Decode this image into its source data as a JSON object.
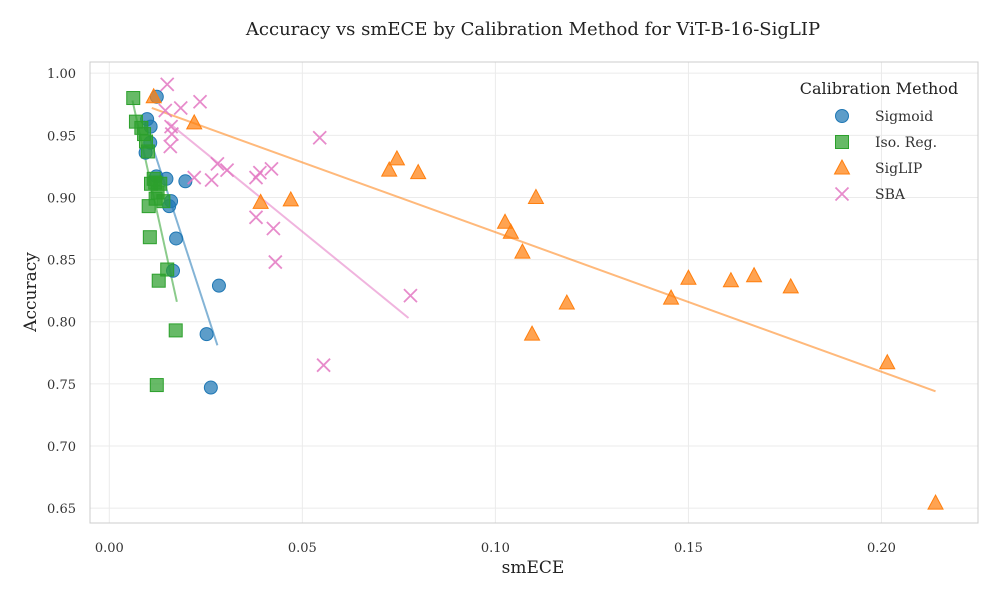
{
  "chart_data": {
    "type": "scatter",
    "title": "Accuracy vs smECE by Calibration Method for ViT-B-16-SigLIP",
    "xlabel": "smECE",
    "ylabel": "Accuracy",
    "xlim": [
      -0.005,
      0.225
    ],
    "ylim": [
      0.638,
      1.009
    ],
    "xticks": [
      0.0,
      0.05,
      0.1,
      0.15,
      0.2
    ],
    "xtick_labels": [
      "0.00",
      "0.05",
      "0.10",
      "0.15",
      "0.20"
    ],
    "yticks": [
      0.65,
      0.7,
      0.75,
      0.8,
      0.85,
      0.9,
      0.95,
      1.0
    ],
    "ytick_labels": [
      "0.65",
      "0.70",
      "0.75",
      "0.80",
      "0.85",
      "0.90",
      "0.95",
      "1.00"
    ],
    "grid": true,
    "legend": {
      "title": "Calibration Method",
      "placement": "top-right"
    },
    "series": [
      {
        "name": "Sigmoid",
        "marker": "circle",
        "color": "#1f77b4",
        "points": [
          [
            0.0123,
            0.981
          ],
          [
            0.0098,
            0.963
          ],
          [
            0.0107,
            0.957
          ],
          [
            0.0106,
            0.944
          ],
          [
            0.0094,
            0.936
          ],
          [
            0.0122,
            0.917
          ],
          [
            0.0148,
            0.915
          ],
          [
            0.0197,
            0.913
          ],
          [
            0.016,
            0.897
          ],
          [
            0.0155,
            0.893
          ],
          [
            0.0173,
            0.867
          ],
          [
            0.0165,
            0.841
          ],
          [
            0.0284,
            0.829
          ],
          [
            0.0252,
            0.79
          ],
          [
            0.0263,
            0.747
          ]
        ],
        "trend": [
          [
            0.009,
            0.962
          ],
          [
            0.028,
            0.781
          ]
        ]
      },
      {
        "name": "Iso. Reg.",
        "marker": "square",
        "color": "#2ca02c",
        "points": [
          [
            0.0062,
            0.98
          ],
          [
            0.0069,
            0.961
          ],
          [
            0.0083,
            0.956
          ],
          [
            0.009,
            0.951
          ],
          [
            0.0095,
            0.945
          ],
          [
            0.01,
            0.937
          ],
          [
            0.0108,
            0.911
          ],
          [
            0.0119,
            0.912
          ],
          [
            0.0132,
            0.911
          ],
          [
            0.0125,
            0.904
          ],
          [
            0.014,
            0.897
          ],
          [
            0.012,
            0.899
          ],
          [
            0.0102,
            0.893
          ],
          [
            0.0105,
            0.868
          ],
          [
            0.015,
            0.842
          ],
          [
            0.0128,
            0.833
          ],
          [
            0.0172,
            0.793
          ],
          [
            0.0123,
            0.749
          ],
          [
            0.0115,
            0.915
          ]
        ],
        "trend": [
          [
            0.006,
            0.978
          ],
          [
            0.0175,
            0.816
          ]
        ]
      },
      {
        "name": "SigLIP",
        "marker": "triangle",
        "color": "#ff7f0e",
        "points": [
          [
            0.0115,
            0.981
          ],
          [
            0.022,
            0.96
          ],
          [
            0.0392,
            0.896
          ],
          [
            0.047,
            0.898
          ],
          [
            0.0725,
            0.922
          ],
          [
            0.0745,
            0.931
          ],
          [
            0.08,
            0.92
          ],
          [
            0.1025,
            0.88
          ],
          [
            0.104,
            0.872
          ],
          [
            0.107,
            0.856
          ],
          [
            0.1105,
            0.9
          ],
          [
            0.1095,
            0.79
          ],
          [
            0.1185,
            0.815
          ],
          [
            0.1455,
            0.819
          ],
          [
            0.15,
            0.835
          ],
          [
            0.161,
            0.833
          ],
          [
            0.167,
            0.837
          ],
          [
            0.1765,
            0.828
          ],
          [
            0.2015,
            0.767
          ],
          [
            0.214,
            0.654
          ]
        ],
        "trend": [
          [
            0.011,
            0.972
          ],
          [
            0.214,
            0.744
          ]
        ]
      },
      {
        "name": "SBA",
        "marker": "x",
        "color": "#e377c2",
        "points": [
          [
            0.015,
            0.991
          ],
          [
            0.0145,
            0.97
          ],
          [
            0.0185,
            0.972
          ],
          [
            0.0235,
            0.977
          ],
          [
            0.016,
            0.957
          ],
          [
            0.0162,
            0.951
          ],
          [
            0.0158,
            0.941
          ],
          [
            0.022,
            0.916
          ],
          [
            0.028,
            0.927
          ],
          [
            0.0305,
            0.922
          ],
          [
            0.0265,
            0.914
          ],
          [
            0.039,
            0.92
          ],
          [
            0.038,
            0.916
          ],
          [
            0.042,
            0.923
          ],
          [
            0.038,
            0.884
          ],
          [
            0.0425,
            0.875
          ],
          [
            0.043,
            0.848
          ],
          [
            0.0545,
            0.948
          ],
          [
            0.078,
            0.821
          ],
          [
            0.0555,
            0.765
          ]
        ],
        "trend": [
          [
            0.015,
            0.961
          ],
          [
            0.0775,
            0.803
          ]
        ]
      }
    ]
  }
}
